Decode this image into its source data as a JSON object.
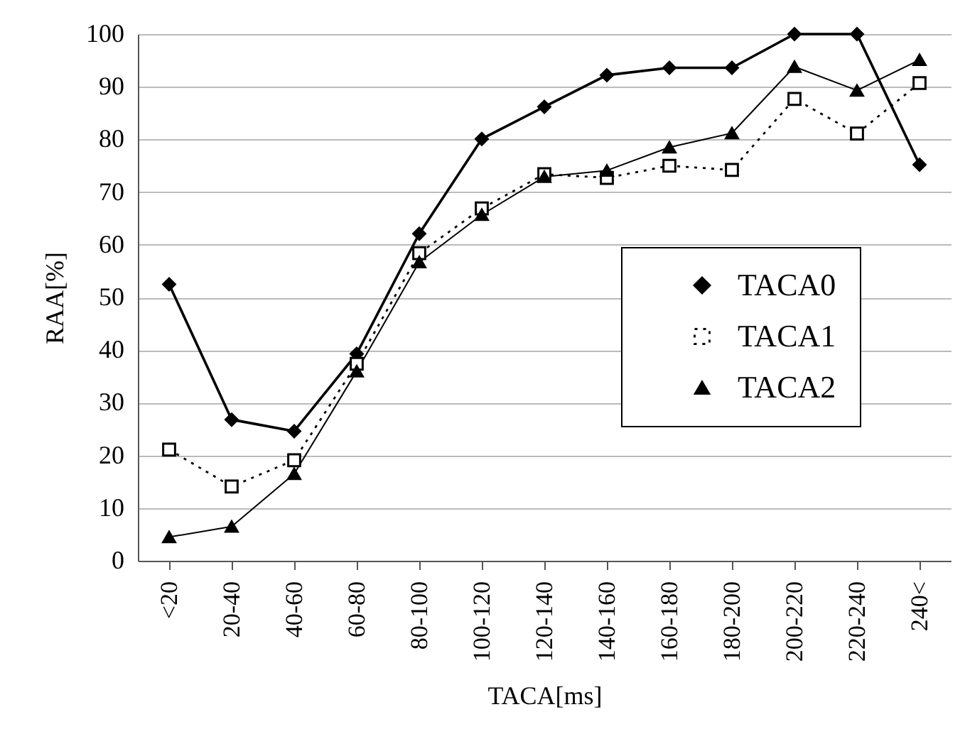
{
  "chart_data": {
    "type": "line",
    "xlabel": "TACA[ms]",
    "ylabel": "RAA[%]",
    "categories": [
      "<20",
      "20-40",
      "40-60",
      "60-80",
      "80-100",
      "100-120",
      "120-140",
      "140-160",
      "160-180",
      "180-200",
      "200-220",
      "220-240",
      "240<"
    ],
    "series": [
      {
        "name": "TACA0",
        "color": "#000000",
        "marker": "diamond",
        "line_style": "solid",
        "values": [
          52.5,
          26.8,
          24.6,
          39.3,
          62.1,
          80.1,
          86.2,
          92.2,
          93.6,
          93.6,
          100,
          100,
          75.2
        ]
      },
      {
        "name": "TACA1",
        "color": "#000000",
        "marker": "square",
        "line_style": "dotted",
        "values": [
          21.1,
          14.1,
          19.1,
          37.4,
          58.4,
          66.9,
          73.4,
          72.7,
          75,
          74.2,
          87.7,
          81.1,
          90.7
        ]
      },
      {
        "name": "TACA2",
        "color": "#000000",
        "marker": "triangle",
        "line_style": "solid",
        "values": [
          4.5,
          6.5,
          16.5,
          36,
          56.7,
          65.7,
          72.9,
          74.1,
          78.5,
          81.2,
          93.8,
          89.3,
          95.1
        ]
      }
    ],
    "ylim": [
      0,
      100
    ],
    "yticks": [
      0,
      10,
      20,
      30,
      40,
      50,
      60,
      70,
      80,
      90,
      100
    ],
    "grid": "y",
    "legend": "right"
  }
}
